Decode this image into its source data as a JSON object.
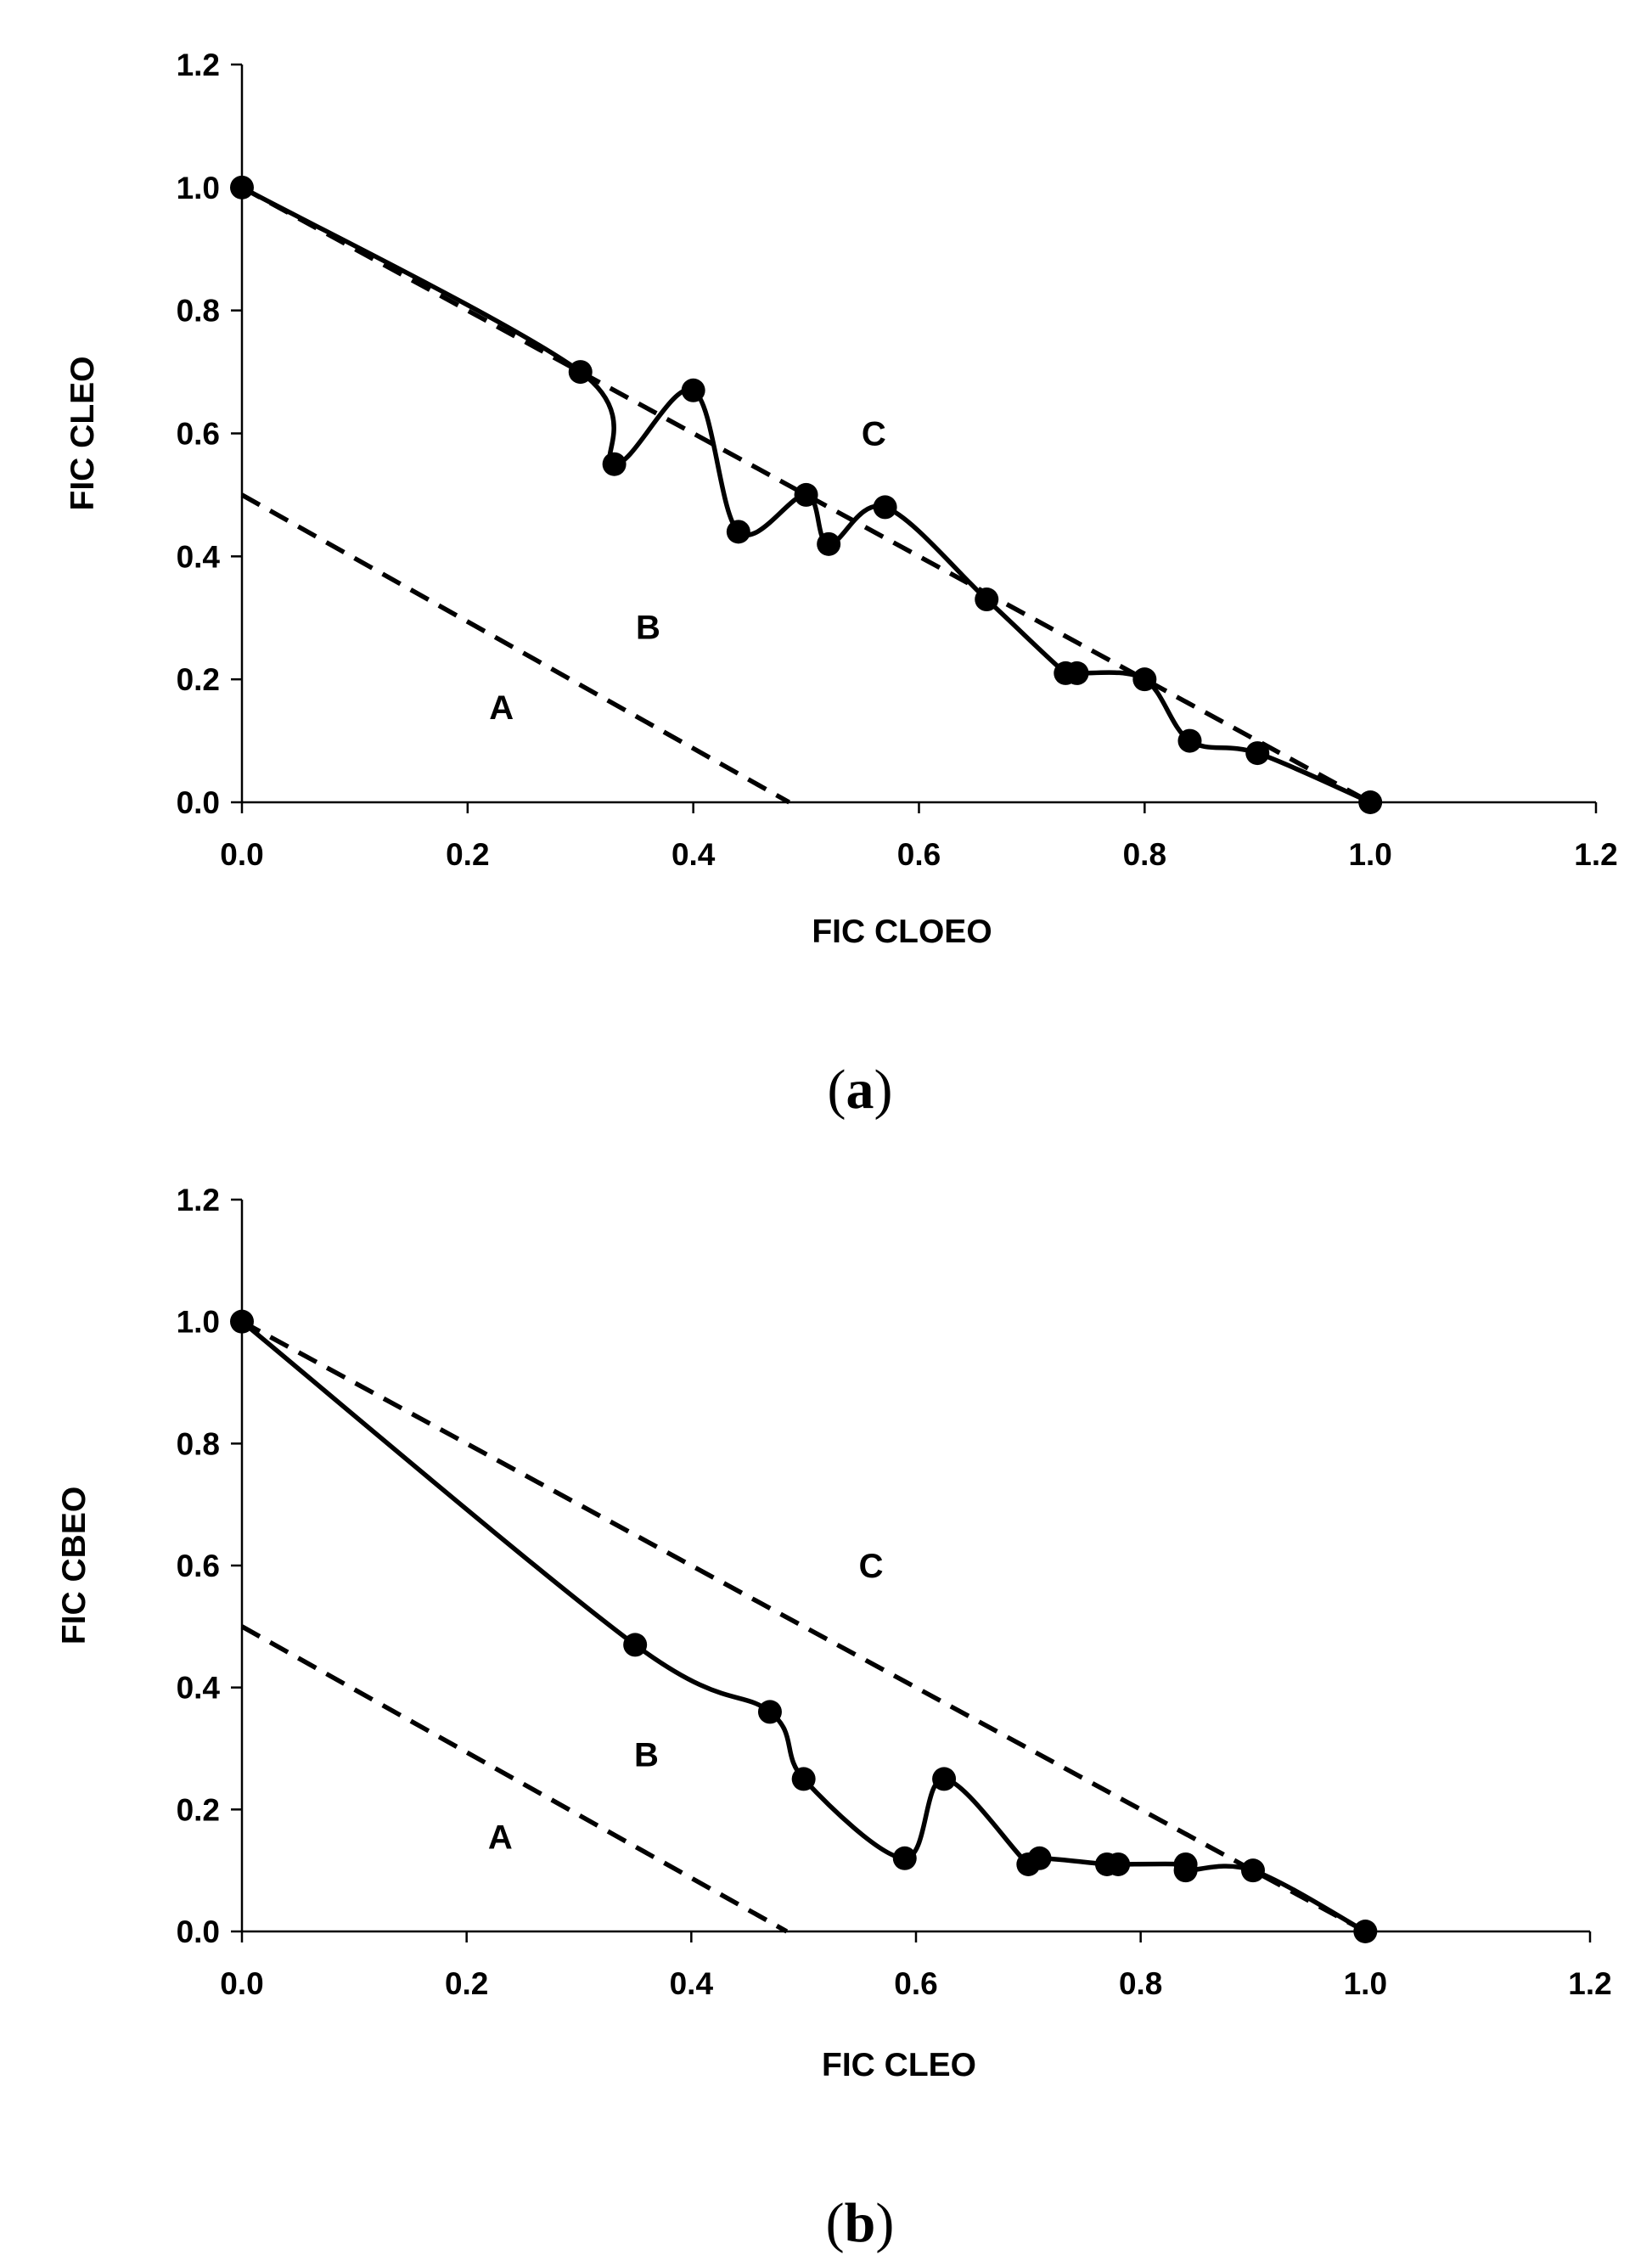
{
  "colors": {
    "ink": "#000000",
    "background": "#ffffff"
  },
  "chart_data": [
    {
      "type": "line",
      "panel_label": {
        "open": "(",
        "letter": "a",
        "close": ")"
      },
      "xlabel": "FIC CLOEO",
      "ylabel": "FIC CLEO",
      "xlim": [
        0,
        1.2
      ],
      "ylim": [
        0,
        1.2
      ],
      "xticks": [
        "0.0",
        "0.2",
        "0.4",
        "0.6",
        "0.8",
        "1.0",
        "1.2"
      ],
      "yticks": [
        "0.0",
        "0.2",
        "0.4",
        "0.6",
        "0.8",
        "1.0",
        "1.2"
      ],
      "grid": false,
      "series": [
        {
          "name": "isobologram",
          "style": "solid-smooth-markers",
          "x": [
            0.0,
            0.3,
            0.33,
            0.4,
            0.44,
            0.5,
            0.52,
            0.57,
            0.66,
            0.73,
            0.74,
            0.8,
            0.84,
            0.9,
            1.0
          ],
          "y": [
            1.0,
            0.7,
            0.55,
            0.67,
            0.44,
            0.5,
            0.42,
            0.48,
            0.33,
            0.21,
            0.21,
            0.2,
            0.1,
            0.08,
            0.0
          ]
        }
      ],
      "reference_lines": [
        {
          "name": "additivity-line",
          "style": "dashed",
          "x": [
            0.0,
            1.0
          ],
          "y": [
            1.0,
            0.0
          ]
        },
        {
          "name": "synergy-line",
          "style": "dashed",
          "x": [
            0.0,
            0.485
          ],
          "y": [
            0.5,
            0.0
          ]
        }
      ],
      "regions": [
        {
          "label": "A",
          "x": 0.23,
          "y": 0.155
        },
        {
          "label": "B",
          "x": 0.36,
          "y": 0.285
        },
        {
          "label": "C",
          "x": 0.56,
          "y": 0.6
        }
      ]
    },
    {
      "type": "line",
      "panel_label": {
        "open": "(",
        "letter": "b",
        "close": ")"
      },
      "xlabel": "FIC CLEO",
      "ylabel": "FIC CBEO",
      "xlim": [
        0,
        1.2
      ],
      "ylim": [
        0,
        1.2
      ],
      "xticks": [
        "0.0",
        "0.2",
        "0.4",
        "0.6",
        "0.8",
        "1.0",
        "1.2"
      ],
      "yticks": [
        "0.0",
        "0.2",
        "0.4",
        "0.6",
        "0.8",
        "1.0",
        "1.2"
      ],
      "grid": false,
      "series": [
        {
          "name": "isobologram",
          "style": "solid-smooth-markers",
          "x": [
            0.0,
            0.35,
            0.47,
            0.5,
            0.59,
            0.625,
            0.7,
            0.71,
            0.77,
            0.78,
            0.84,
            0.84,
            0.9,
            1.0
          ],
          "y": [
            1.0,
            0.47,
            0.36,
            0.25,
            0.12,
            0.25,
            0.11,
            0.12,
            0.11,
            0.11,
            0.11,
            0.1,
            0.1,
            0.0
          ]
        }
      ],
      "reference_lines": [
        {
          "name": "additivity-line",
          "style": "dashed",
          "x": [
            0.0,
            1.0
          ],
          "y": [
            1.0,
            0.0
          ]
        },
        {
          "name": "synergy-line",
          "style": "dashed",
          "x": [
            0.0,
            0.485
          ],
          "y": [
            0.5,
            0.0
          ]
        }
      ],
      "regions": [
        {
          "label": "A",
          "x": 0.23,
          "y": 0.155
        },
        {
          "label": "B",
          "x": 0.36,
          "y": 0.29
        },
        {
          "label": "C",
          "x": 0.56,
          "y": 0.6
        }
      ]
    }
  ]
}
